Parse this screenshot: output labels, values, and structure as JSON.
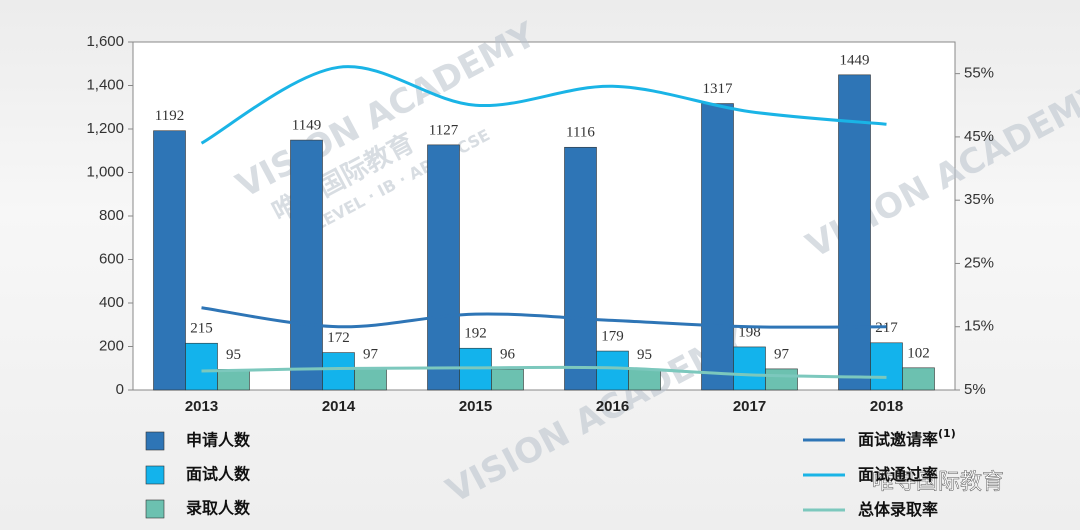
{
  "chart_data": {
    "type": "bar_line",
    "categories": [
      "2013",
      "2014",
      "2015",
      "2016",
      "2017",
      "2018"
    ],
    "series": [
      {
        "name": "申请人数",
        "color": "#2e75b6",
        "values": [
          1192,
          1149,
          1127,
          1116,
          1317,
          1449
        ]
      },
      {
        "name": "面试人数",
        "color": "#13b3ec",
        "values": [
          215,
          172,
          192,
          179,
          198,
          217
        ]
      },
      {
        "name": "录取人数",
        "color": "#6cc1b0",
        "values": [
          95,
          97,
          96,
          95,
          97,
          102
        ]
      },
      {
        "name": "面试邀请率",
        "name_note": "(1)",
        "color": "#2e75b6",
        "axis": "y2",
        "values": [
          18,
          15,
          17,
          16,
          15,
          15
        ]
      },
      {
        "name": "面试通过率",
        "color": "#1ab4e6",
        "axis": "y2",
        "values": [
          44,
          56,
          50,
          53,
          49,
          47
        ]
      },
      {
        "name": "总体录取率",
        "color": "#7cc8bd",
        "axis": "y2",
        "values": [
          8,
          8.4,
          8.5,
          8.5,
          7.4,
          7
        ]
      }
    ],
    "ylim": [
      0,
      1600
    ],
    "yticks": [
      0,
      200,
      400,
      600,
      800,
      {
        "value": 1000,
        "label": "1,000"
      },
      {
        "value": 1200,
        "label": "1,200"
      },
      {
        "value": 1400,
        "label": "1,400"
      },
      {
        "value": 1600,
        "label": "1,600"
      }
    ],
    "y2lim": [
      5,
      60
    ],
    "y2ticks": [
      {
        "value": 5,
        "label": "5%"
      },
      {
        "value": 15,
        "label": "15%"
      },
      {
        "value": 25,
        "label": "25%"
      },
      {
        "value": 35,
        "label": "35%"
      },
      {
        "value": 45,
        "label": "45%"
      },
      {
        "value": 55,
        "label": "55%"
      }
    ],
    "watermark": [
      "VISION ACADEMY",
      "唯寻国际教育",
      "A LEVEL · IB · AP · GCSE",
      "唯寻国际教育"
    ]
  }
}
